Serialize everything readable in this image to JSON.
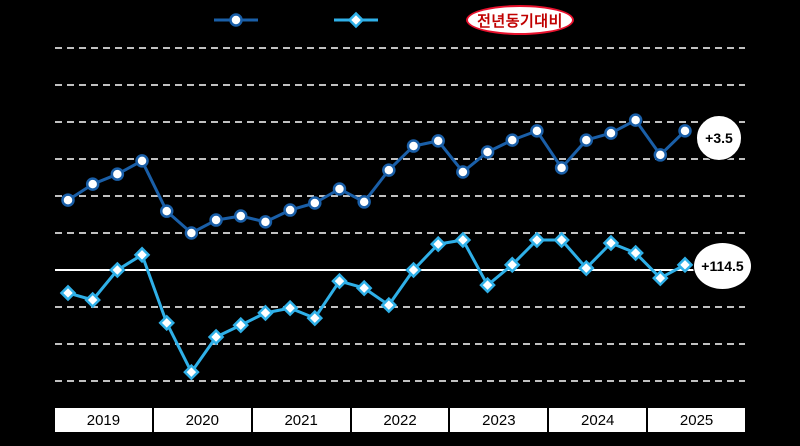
{
  "colors": {
    "background": "#000000",
    "grid": "#ffffff",
    "series1": "#1a5fa8",
    "series2": "#2fb0e8",
    "badge_border": "#e8112d",
    "badge_text": "#c00000",
    "axis_band_bg": "#ffffff",
    "axis_text": "#000000"
  },
  "legend": {
    "badge_label": "전년동기대비",
    "series1": {
      "marker": "circle",
      "color": "#1a5fa8"
    },
    "series2": {
      "marker": "diamond",
      "color": "#2fb0e8"
    }
  },
  "annotations": {
    "series1_end_label": "+3.5",
    "series2_end_label": "+114.5"
  },
  "x_axis": {
    "years": [
      "2019",
      "2020",
      "2021",
      "2022",
      "2023",
      "2024",
      "2025"
    ]
  },
  "chart_data": {
    "type": "line",
    "title": "",
    "xlabel": "",
    "ylabel": "",
    "y_unit": "gridline units above/below solid baseline (axis tick labels not visible in image)",
    "legend_badge": "전년동기대비",
    "legend_position": "top",
    "grid": "dashed horizontal lines, solid baseline",
    "ylim": [
      -3.7,
      6.2
    ],
    "x": [
      "2019Q1",
      "2019Q2",
      "2019Q3",
      "2019Q4",
      "2020Q1",
      "2020Q2",
      "2020Q3",
      "2020Q4",
      "2021Q1",
      "2021Q2",
      "2021Q3",
      "2021Q4",
      "2022Q1",
      "2022Q2",
      "2022Q3",
      "2022Q4",
      "2023Q1",
      "2023Q2",
      "2023Q3",
      "2023Q4",
      "2024Q1",
      "2024Q2",
      "2024Q3",
      "2024Q4",
      "2025Q1",
      "2025Q2"
    ],
    "series": [
      {
        "name": "series1",
        "marker": "circle",
        "color": "#1a5fa8",
        "end_label": "+3.5",
        "values": [
          1.89,
          2.32,
          2.59,
          2.95,
          1.59,
          1.0,
          1.35,
          1.46,
          1.3,
          1.62,
          1.81,
          2.19,
          1.84,
          2.7,
          3.35,
          3.49,
          2.65,
          3.19,
          3.51,
          3.76,
          2.76,
          3.51,
          3.7,
          4.05,
          3.11,
          3.76
        ]
      },
      {
        "name": "series2",
        "marker": "diamond",
        "color": "#2fb0e8",
        "end_label": "+114.5",
        "values": [
          -0.62,
          -0.81,
          0.0,
          0.41,
          -1.43,
          -2.76,
          -1.81,
          -1.49,
          -1.16,
          -1.03,
          -1.3,
          -0.3,
          -0.49,
          -0.95,
          0.0,
          0.7,
          0.81,
          -0.41,
          0.14,
          0.81,
          0.81,
          0.05,
          0.73,
          0.46,
          -0.22,
          0.14
        ]
      }
    ]
  }
}
